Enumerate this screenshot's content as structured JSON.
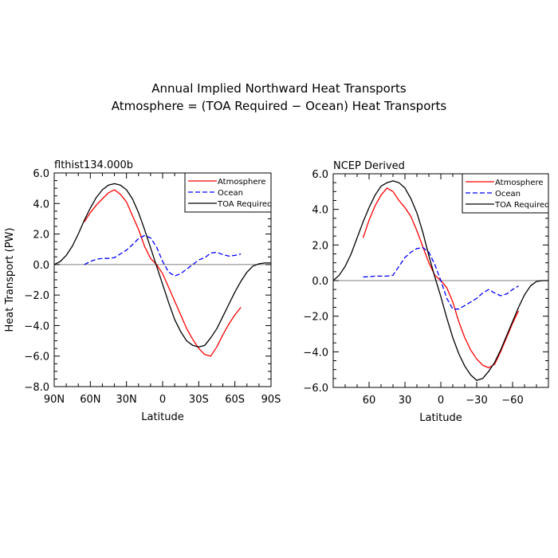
{
  "figure": {
    "title_line1": "Annual Implied Northward Heat Transports",
    "title_line2": "Atmosphere = (TOA Required − Ocean) Heat Transports"
  },
  "chart_data": [
    {
      "type": "line",
      "panel_label": "flthist134.000b",
      "xlabel": "Latitude",
      "ylabel": "Heat Transport (PW)",
      "xlim": [
        90,
        -90
      ],
      "ylim": [
        -8,
        6
      ],
      "xticks": [
        90,
        60,
        30,
        0,
        -30,
        -60,
        -90
      ],
      "xtick_labels": [
        "90N",
        "60N",
        "30N",
        "0",
        "30S",
        "60S",
        "90S"
      ],
      "yticks": [
        6,
        4,
        2,
        0,
        -2,
        -4,
        -6,
        -8
      ],
      "ytick_labels": [
        "6.0",
        "4.0",
        "2.0",
        "0.0",
        "−2.0",
        "−4.0",
        "−6.0",
        "−8.0"
      ],
      "zero_line": true,
      "legend": {
        "location": "top-right",
        "entries": [
          "Atmosphere",
          "Ocean",
          "TOA Required"
        ]
      },
      "series": [
        {
          "name": "Atmosphere",
          "color": "#ff0000",
          "dash": "solid",
          "x": [
            65,
            60,
            55,
            50,
            45,
            40,
            35,
            30,
            25,
            20,
            15,
            10,
            5,
            0,
            -5,
            -10,
            -15,
            -20,
            -25,
            -30,
            -35,
            -40,
            -45,
            -50,
            -55,
            -60,
            -65
          ],
          "y": [
            2.8,
            3.4,
            3.9,
            4.3,
            4.7,
            4.9,
            4.6,
            4.1,
            3.2,
            2.3,
            1.2,
            0.4,
            0.0,
            -0.6,
            -1.5,
            -2.4,
            -3.3,
            -4.2,
            -4.9,
            -5.5,
            -5.9,
            -6.0,
            -5.4,
            -4.6,
            -3.9,
            -3.3,
            -2.8
          ]
        },
        {
          "name": "Ocean",
          "color": "#0000ff",
          "dash": "dashed",
          "x": [
            65,
            60,
            55,
            50,
            45,
            40,
            35,
            30,
            25,
            20,
            15,
            10,
            5,
            0,
            -5,
            -10,
            -15,
            -20,
            -25,
            -30,
            -35,
            -40,
            -45,
            -50,
            -55,
            -60,
            -65
          ],
          "y": [
            0.0,
            0.2,
            0.35,
            0.4,
            0.4,
            0.45,
            0.7,
            0.95,
            1.3,
            1.7,
            1.9,
            1.75,
            1.15,
            0.2,
            -0.5,
            -0.75,
            -0.6,
            -0.3,
            0.0,
            0.3,
            0.45,
            0.75,
            0.8,
            0.65,
            0.55,
            0.6,
            0.7
          ]
        },
        {
          "name": "TOA Required",
          "color": "#000000",
          "dash": "solid",
          "x": [
            90,
            85,
            80,
            75,
            70,
            65,
            60,
            55,
            50,
            45,
            40,
            35,
            30,
            25,
            20,
            15,
            10,
            5,
            0,
            -5,
            -10,
            -15,
            -20,
            -25,
            -30,
            -35,
            -40,
            -45,
            -50,
            -55,
            -60,
            -65,
            -70,
            -75,
            -80,
            -85,
            -90
          ],
          "y": [
            0.0,
            0.2,
            0.6,
            1.2,
            2.0,
            2.9,
            3.7,
            4.4,
            4.9,
            5.2,
            5.3,
            5.2,
            4.9,
            4.3,
            3.4,
            2.3,
            1.1,
            -0.1,
            -1.3,
            -2.5,
            -3.6,
            -4.4,
            -5.0,
            -5.3,
            -5.4,
            -5.3,
            -4.8,
            -4.2,
            -3.4,
            -2.6,
            -1.8,
            -1.1,
            -0.5,
            -0.1,
            0.05,
            0.1,
            0.1
          ]
        }
      ]
    },
    {
      "type": "line",
      "panel_label": "NCEP Derived",
      "xlabel": "Latitude",
      "ylabel": "",
      "xlim": [
        90,
        -90
      ],
      "ylim": [
        -6,
        6
      ],
      "xticks": [
        60,
        30,
        0,
        -30,
        -60
      ],
      "xtick_labels": [
        "60",
        "30",
        "0",
        "−30",
        "−60"
      ],
      "yticks": [
        6,
        4,
        2,
        0,
        -2,
        -4,
        -6
      ],
      "ytick_labels": [
        "6.0",
        "4.0",
        "2.0",
        "0.0",
        "−2.0",
        "−4.0",
        "−6.0"
      ],
      "zero_line": true,
      "legend": {
        "location": "top-right",
        "entries": [
          "Atmosphere",
          "Ocean",
          "TOA Required"
        ]
      },
      "series": [
        {
          "name": "Atmosphere",
          "color": "#ff0000",
          "dash": "solid",
          "x": [
            65,
            60,
            55,
            50,
            45,
            40,
            35,
            30,
            25,
            20,
            15,
            10,
            5,
            0,
            -5,
            -10,
            -15,
            -20,
            -25,
            -30,
            -35,
            -40,
            -45,
            -50,
            -55,
            -60,
            -65
          ],
          "y": [
            2.4,
            3.4,
            4.2,
            4.8,
            5.2,
            5.0,
            4.5,
            4.1,
            3.6,
            2.8,
            1.9,
            1.0,
            0.3,
            0.0,
            -0.4,
            -1.2,
            -2.3,
            -3.2,
            -3.9,
            -4.4,
            -4.75,
            -4.9,
            -4.7,
            -4.0,
            -3.2,
            -2.4,
            -1.7
          ]
        },
        {
          "name": "Ocean",
          "color": "#0000ff",
          "dash": "dashed",
          "x": [
            65,
            60,
            55,
            50,
            45,
            40,
            35,
            30,
            25,
            20,
            15,
            10,
            5,
            0,
            -5,
            -10,
            -15,
            -20,
            -25,
            -30,
            -35,
            -40,
            -45,
            -50,
            -55,
            -60,
            -65
          ],
          "y": [
            0.2,
            0.22,
            0.25,
            0.25,
            0.25,
            0.3,
            0.8,
            1.3,
            1.6,
            1.8,
            1.85,
            1.6,
            0.9,
            0.0,
            -1.0,
            -1.6,
            -1.6,
            -1.4,
            -1.2,
            -1.0,
            -0.7,
            -0.5,
            -0.7,
            -0.85,
            -0.75,
            -0.5,
            -0.3
          ]
        },
        {
          "name": "TOA Required",
          "color": "#000000",
          "dash": "solid",
          "x": [
            90,
            85,
            80,
            75,
            70,
            65,
            60,
            55,
            50,
            45,
            40,
            35,
            30,
            25,
            20,
            15,
            10,
            5,
            0,
            -5,
            -10,
            -15,
            -20,
            -25,
            -30,
            -35,
            -40,
            -45,
            -50,
            -55,
            -60,
            -65,
            -70,
            -75,
            -80,
            -85,
            -90
          ],
          "y": [
            0.0,
            0.3,
            0.8,
            1.5,
            2.4,
            3.3,
            4.1,
            4.8,
            5.3,
            5.5,
            5.6,
            5.5,
            5.2,
            4.6,
            3.8,
            2.7,
            1.4,
            0.2,
            -0.9,
            -2.1,
            -3.2,
            -4.1,
            -4.8,
            -5.3,
            -5.6,
            -5.5,
            -5.1,
            -4.6,
            -3.9,
            -3.1,
            -2.3,
            -1.5,
            -0.8,
            -0.3,
            -0.05,
            0.0,
            0.0
          ]
        }
      ]
    }
  ]
}
